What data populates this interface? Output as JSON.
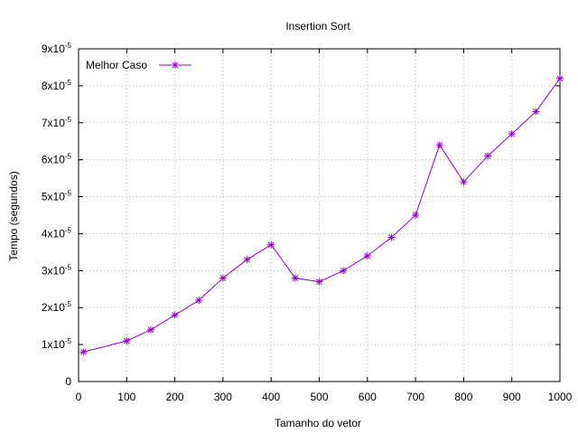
{
  "chart_data": {
    "type": "line",
    "title": "Insertion Sort",
    "xlabel": "Tamanho do vetor",
    "ylabel": "Tempo (segundos)",
    "xlim": [
      0,
      1000
    ],
    "ylim": [
      0,
      9e-05
    ],
    "x_ticks": [
      0,
      100,
      200,
      300,
      400,
      500,
      600,
      700,
      800,
      900,
      1000
    ],
    "y_ticks": [
      {
        "value": 0,
        "mantissa": "0",
        "exponent": ""
      },
      {
        "value": 1e-05,
        "mantissa": "1x10",
        "exponent": "-5"
      },
      {
        "value": 2e-05,
        "mantissa": "2x10",
        "exponent": "-5"
      },
      {
        "value": 3e-05,
        "mantissa": "3x10",
        "exponent": "-5"
      },
      {
        "value": 4e-05,
        "mantissa": "4x10",
        "exponent": "-5"
      },
      {
        "value": 5e-05,
        "mantissa": "5x10",
        "exponent": "-5"
      },
      {
        "value": 6e-05,
        "mantissa": "6x10",
        "exponent": "-5"
      },
      {
        "value": 7e-05,
        "mantissa": "7x10",
        "exponent": "-5"
      },
      {
        "value": 8e-05,
        "mantissa": "8x10",
        "exponent": "-5"
      },
      {
        "value": 9e-05,
        "mantissa": "9x10",
        "exponent": "-5"
      }
    ],
    "grid": true,
    "legend_position": "top-left",
    "series": [
      {
        "name": "Melhor Caso",
        "color": "#9400d3",
        "marker": "star",
        "x": [
          10,
          100,
          150,
          200,
          250,
          300,
          350,
          400,
          450,
          500,
          550,
          600,
          650,
          700,
          750,
          800,
          850,
          900,
          950,
          1000
        ],
        "y": [
          8e-06,
          1.1e-05,
          1.4e-05,
          1.8e-05,
          2.2e-05,
          2.8e-05,
          3.3e-05,
          3.7e-05,
          2.8e-05,
          2.7e-05,
          3e-05,
          3.4e-05,
          3.9e-05,
          4.5e-05,
          6.4e-05,
          5.4e-05,
          6.1e-05,
          6.7e-05,
          7.3e-05,
          8.2e-05
        ]
      }
    ]
  }
}
